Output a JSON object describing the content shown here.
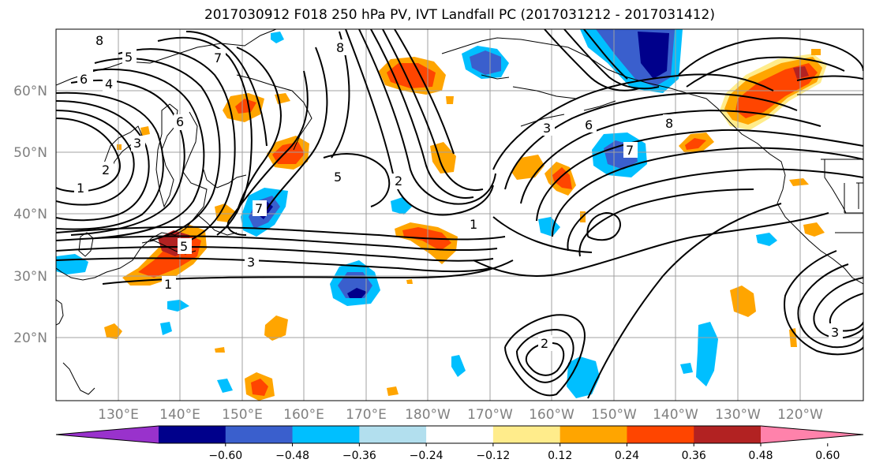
{
  "title": "2017030912 F018 250 hPa PV, IVT Landfall PC (2017031212 - 2017031412)",
  "map": {
    "lat_labels": [
      "60°N",
      "50°N",
      "40°N",
      "30°N",
      "20°N"
    ],
    "lon_labels": [
      "130°E",
      "140°E",
      "150°E",
      "160°E",
      "170°E",
      "180°W",
      "170°W",
      "160°W",
      "150°W",
      "140°W",
      "130°W",
      "120°W"
    ],
    "contour_labels": [
      "8",
      "5",
      "6",
      "4",
      "3",
      "2",
      "1",
      "6",
      "7",
      "8",
      "5",
      "2",
      "3",
      "1",
      "7",
      "5",
      "7",
      "8",
      "6",
      "3",
      "1",
      "2",
      "3"
    ]
  },
  "colorbar": {
    "tick_labels": [
      "−0.60",
      "−0.48",
      "−0.36",
      "−0.24",
      "−0.12",
      "0.12",
      "0.24",
      "0.36",
      "0.48",
      "0.60"
    ],
    "colors": [
      "#9932CC",
      "#00008B",
      "#3A5FCD",
      "#00BFFF",
      "#B2DFEE",
      "#FFFFFF",
      "#FFEC8B",
      "#FFA500",
      "#FF4500",
      "#B22222",
      "#FF82AB"
    ]
  }
}
